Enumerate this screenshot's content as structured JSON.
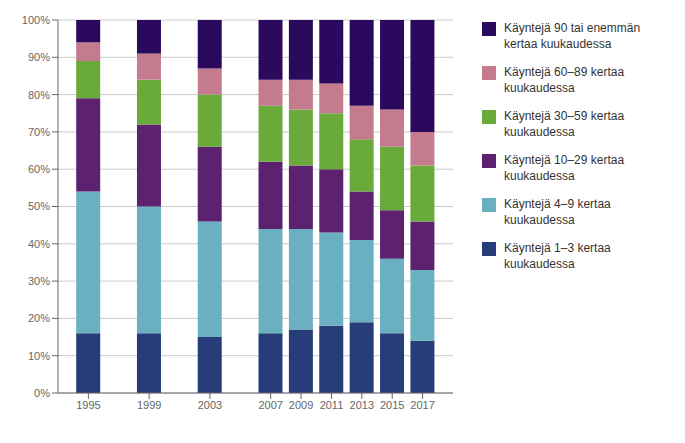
{
  "chart_data": {
    "type": "bar",
    "stacked": true,
    "grid": true,
    "legend": "right",
    "x": [
      1995,
      1999,
      2003,
      2007,
      2009,
      2011,
      2013,
      2015,
      2017
    ],
    "xlim": [
      1993,
      2019
    ],
    "xticks": [
      1995,
      1999,
      2003,
      2007,
      2009,
      2011,
      2013,
      2015,
      2017
    ],
    "ylim": [
      0,
      100
    ],
    "yticks": [
      {
        "value": 0,
        "label": "0%"
      },
      {
        "value": 10,
        "label": "10%"
      },
      {
        "value": 20,
        "label": "20%"
      },
      {
        "value": 30,
        "label": "30%"
      },
      {
        "value": 40,
        "label": "40%"
      },
      {
        "value": 50,
        "label": "50%"
      },
      {
        "value": 60,
        "label": "60%"
      },
      {
        "value": 70,
        "label": "70%"
      },
      {
        "value": 80,
        "label": "80%"
      },
      {
        "value": 90,
        "label": "90%"
      },
      {
        "value": 100,
        "label": "100%"
      }
    ],
    "series": [
      {
        "name": "Käyntejä 1–3 kertaa\nkuukaudessa",
        "color": "#263d7a",
        "values": [
          16,
          16,
          15,
          16,
          17,
          18,
          19,
          16,
          14
        ]
      },
      {
        "name": "Käyntejä 4–9 kertaa\nkuukaudessa",
        "color": "#6ab0c0",
        "values": [
          38,
          34,
          31,
          28,
          27,
          25,
          22,
          20,
          19
        ]
      },
      {
        "name": "Käyntejä 10–29 kertaa\nkuukaudessa",
        "color": "#5c2270",
        "values": [
          25,
          22,
          20,
          18,
          17,
          17,
          13,
          13,
          13
        ]
      },
      {
        "name": "Käyntejä 30–59 kertaa\nkuukaudessa",
        "color": "#6aaa3a",
        "values": [
          10,
          12,
          14,
          15,
          15,
          15,
          14,
          17,
          15
        ]
      },
      {
        "name": "Käyntejä 60–89 kertaa\nkuukaudessa",
        "color": "#c47b8e",
        "values": [
          5,
          7,
          7,
          7,
          8,
          8,
          9,
          10,
          9
        ]
      },
      {
        "name": "Käyntejä 90 tai enemmän\nkertaa kuukaudessa",
        "color": "#2b0a5e",
        "values": [
          6,
          9,
          13,
          16,
          16,
          17,
          23,
          24,
          30
        ]
      }
    ]
  }
}
